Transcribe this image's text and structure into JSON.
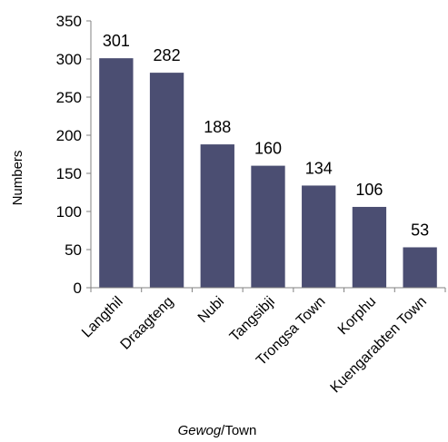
{
  "chart_data": {
    "type": "bar",
    "categories": [
      "Langthil",
      "Draagteng",
      "Nubi",
      "Tangsibji",
      "Trongsa Town",
      "Korphu",
      "Kuengarabten Town"
    ],
    "values": [
      301,
      282,
      188,
      160,
      134,
      106,
      53
    ],
    "data_labels": [
      "301",
      "282",
      "188",
      "160",
      "134",
      "106",
      "53"
    ],
    "xlabel_italic": "Gewog",
    "xlabel_rest": "/Town",
    "ylabel": "Numbers",
    "ylim": [
      0,
      350
    ],
    "yticks": [
      "0",
      "50",
      "100",
      "150",
      "200",
      "250",
      "300",
      "350"
    ],
    "grid": false,
    "bar_color": "#4b4e72"
  }
}
